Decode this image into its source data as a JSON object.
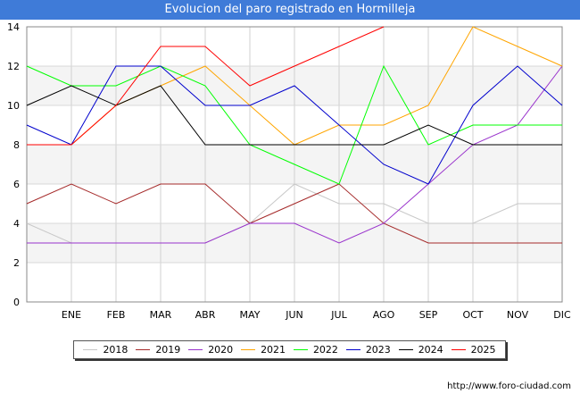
{
  "chart_data": {
    "type": "line",
    "title": "Evolucion del paro registrado en Hormilleja",
    "xlabel": "",
    "ylabel": "",
    "categories": [
      "",
      "ENE",
      "FEB",
      "MAR",
      "ABR",
      "MAY",
      "JUN",
      "JUL",
      "AGO",
      "SEP",
      "OCT",
      "NOV",
      "DIC"
    ],
    "ylim": [
      0,
      14
    ],
    "yticks": [
      0,
      2,
      4,
      6,
      8,
      10,
      12,
      14
    ],
    "grid": true,
    "legend_position": "bottom",
    "series": [
      {
        "name": "2018",
        "color": "#c8c8c8",
        "values": [
          4,
          3,
          3,
          3,
          3,
          4,
          6,
          5,
          5,
          4,
          4,
          5,
          5
        ]
      },
      {
        "name": "2019",
        "color": "#a52a2a",
        "values": [
          5,
          6,
          5,
          6,
          6,
          4,
          5,
          6,
          4,
          3,
          3,
          3,
          3
        ]
      },
      {
        "name": "2020",
        "color": "#9932cc",
        "values": [
          3,
          3,
          3,
          3,
          3,
          4,
          4,
          3,
          4,
          6,
          8,
          9,
          12
        ]
      },
      {
        "name": "2021",
        "color": "#ffa500",
        "values": [
          8,
          8,
          10,
          11,
          12,
          10,
          8,
          9,
          9,
          10,
          14,
          13,
          12
        ]
      },
      {
        "name": "2022",
        "color": "#00ff00",
        "values": [
          12,
          11,
          11,
          12,
          11,
          8,
          7,
          6,
          12,
          8,
          9,
          9,
          9
        ]
      },
      {
        "name": "2023",
        "color": "#0000cd",
        "values": [
          9,
          8,
          12,
          12,
          10,
          10,
          11,
          9,
          7,
          6,
          10,
          12,
          10
        ]
      },
      {
        "name": "2024",
        "color": "#000000",
        "values": [
          10,
          11,
          10,
          11,
          8,
          8,
          8,
          8,
          8,
          9,
          8,
          8,
          8
        ]
      },
      {
        "name": "2025",
        "color": "#ff0000",
        "values": [
          8,
          8,
          10,
          13,
          13,
          11,
          12,
          13,
          14,
          null,
          null,
          null,
          null
        ]
      }
    ]
  },
  "footer": {
    "url": "http://www.foro-ciudad.com"
  }
}
